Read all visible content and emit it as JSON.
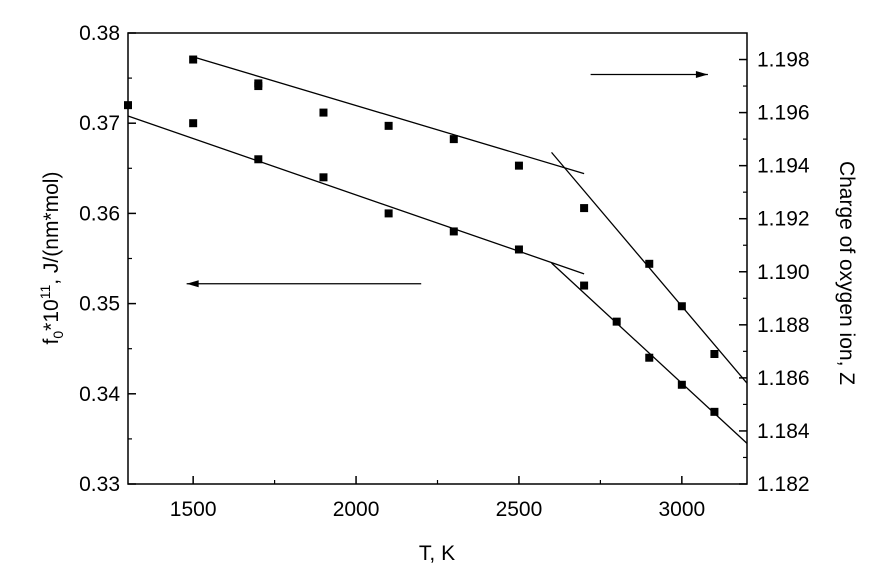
{
  "chart_data": {
    "type": "scatter",
    "title": "",
    "xlabel": "T, K",
    "ylabel_left": "f",
    "ylabel_left_sub": "0",
    "ylabel_left_mid": "*10",
    "ylabel_left_sup": "11",
    "ylabel_left_tail": ", J/(nm*mol)",
    "ylabel_right": "Charge of oxygen ion, Z",
    "xlim": [
      1300,
      3200
    ],
    "ylim_left": [
      0.33,
      0.38
    ],
    "ylim_right": [
      1.182,
      1.199
    ],
    "xticks": [
      1500,
      2000,
      2500,
      3000
    ],
    "xtick_labels": [
      "1500",
      "2000",
      "2500",
      "3000"
    ],
    "yticks_left": [
      0.33,
      0.34,
      0.35,
      0.36,
      0.37,
      0.38
    ],
    "ytick_labels_left": [
      "0.33",
      "0.34",
      "0.35",
      "0.36",
      "0.37",
      "0.38"
    ],
    "yticks_right": [
      1.182,
      1.184,
      1.186,
      1.188,
      1.19,
      1.192,
      1.194,
      1.196,
      1.198
    ],
    "ytick_labels_right": [
      "1.182",
      "1.184",
      "1.186",
      "1.188",
      "1.190",
      "1.192",
      "1.194",
      "1.196",
      "1.198"
    ],
    "grid": false,
    "marker": "square",
    "color": "#000000",
    "series": [
      {
        "axis": "left",
        "x": [
          1300,
          1500,
          1700,
          1900,
          2100,
          2300,
          2500,
          2700,
          2800,
          2900,
          3000,
          3100
        ],
        "y": [
          0.372,
          0.37,
          0.366,
          0.364,
          0.36,
          0.358,
          0.356,
          0.352,
          0.348,
          0.344,
          0.341,
          0.338
        ]
      },
      {
        "axis": "right",
        "x": [
          1500,
          1700,
          1700,
          1900,
          2100,
          2300,
          2500,
          2700,
          2900,
          3000,
          3100
        ],
        "y": [
          1.198,
          1.1971,
          1.197,
          1.196,
          1.1955,
          1.195,
          1.194,
          1.1924,
          1.1903,
          1.1887,
          1.1869
        ]
      }
    ],
    "fit_lines": [
      {
        "axis": "left",
        "x": [
          1300,
          2700
        ],
        "y": [
          0.3708,
          0.3533
        ]
      },
      {
        "axis": "left",
        "x": [
          2600,
          3200
        ],
        "y": [
          0.3545,
          0.3345
        ]
      },
      {
        "axis": "right",
        "x": [
          1500,
          2700
        ],
        "y": [
          1.1981,
          1.1937
        ]
      },
      {
        "axis": "right",
        "x": [
          2600,
          3200
        ],
        "y": [
          1.1945,
          1.1858
        ]
      }
    ],
    "annotations": [
      {
        "type": "arrow",
        "direction": "left",
        "points_to": "left axis",
        "x": [
          2200,
          1480
        ],
        "y_left": 0.3522
      },
      {
        "type": "arrow",
        "direction": "right",
        "points_to": "right axis",
        "x": [
          2720,
          3080
        ],
        "y_left": 0.3754
      }
    ]
  }
}
